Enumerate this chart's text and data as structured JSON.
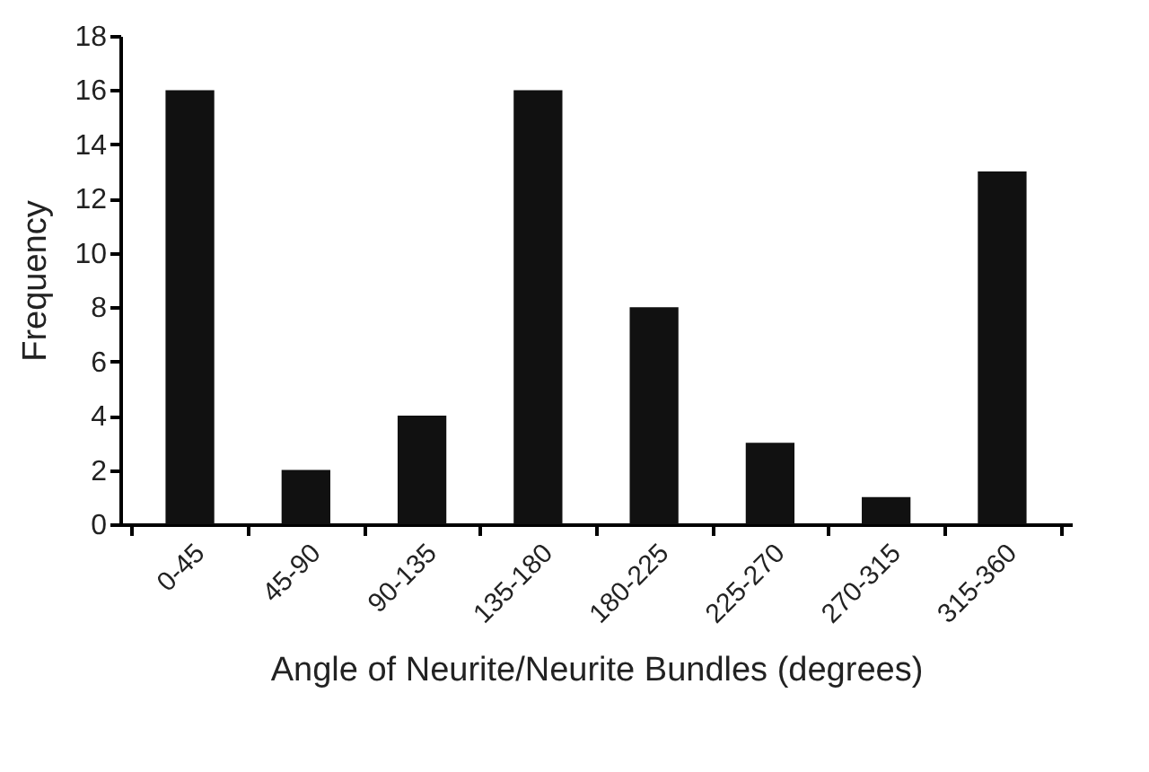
{
  "chart_data": {
    "type": "bar",
    "xlabel": "Angle of Neurite/Neurite Bundles (degrees)",
    "ylabel": "Frequency",
    "categories": [
      "0-45",
      "45-90",
      "90-135",
      "135-180",
      "180-225",
      "225-270",
      "270-315",
      "315-360"
    ],
    "values": [
      16,
      2,
      4,
      16,
      8,
      3,
      1,
      13
    ],
    "color": "#111111",
    "ylim": [
      0,
      18
    ],
    "yticks": [
      0,
      2,
      4,
      6,
      8,
      10,
      12,
      14,
      16,
      18
    ],
    "grid": false
  }
}
